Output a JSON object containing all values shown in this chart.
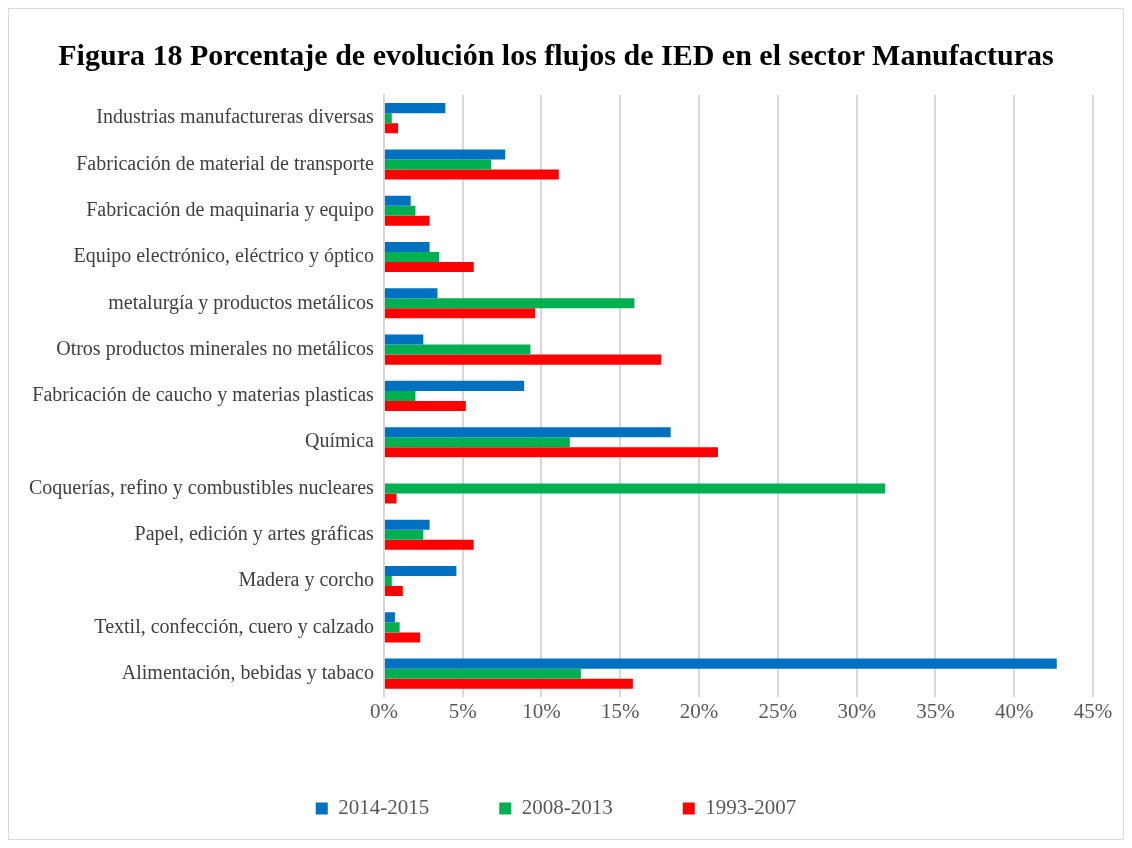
{
  "chart_data": {
    "type": "bar",
    "orientation": "horizontal",
    "title": "Figura 18 Porcentaje de evolución los flujos de IED en el sector Manufacturas",
    "categories": [
      "Industrias manufactureras diversas",
      "Fabricación de material de transporte",
      "Fabricación de maquinaria y equipo",
      "Equipo electrónico, eléctrico y óptico",
      "metalurgía y productos metálicos",
      "Otros productos minerales no metálicos",
      "Fabricación de caucho y materias plasticas",
      "Química",
      "Coquerías, refino y combustibles nucleares",
      "Papel, edición y artes gráficas",
      "Madera y corcho",
      "Textil, confección, cuero y calzado",
      "Alimentación, bebidas y tabaco"
    ],
    "series": [
      {
        "name": "2014-2015",
        "color": "#0070c0",
        "values": [
          3.9,
          7.7,
          1.7,
          2.9,
          3.4,
          2.5,
          8.9,
          18.2,
          0,
          2.9,
          4.6,
          0.7,
          42.7
        ]
      },
      {
        "name": "2008-2013",
        "color": "#00b050",
        "values": [
          0.5,
          6.8,
          2.0,
          3.5,
          15.9,
          9.3,
          2.0,
          11.8,
          31.8,
          2.5,
          0.5,
          1.0,
          12.5
        ]
      },
      {
        "name": "1993-2007",
        "color": "#ff0000",
        "values": [
          0.9,
          11.1,
          2.9,
          5.7,
          9.6,
          17.6,
          5.2,
          21.2,
          0.8,
          5.7,
          1.2,
          2.3,
          15.8
        ]
      }
    ],
    "xlim": [
      0,
      45
    ],
    "xticks": [
      {
        "value": 0,
        "label": "0%"
      },
      {
        "value": 5,
        "label": "5%"
      },
      {
        "value": 10,
        "label": "10%"
      },
      {
        "value": 15,
        "label": "15%"
      },
      {
        "value": 20,
        "label": "20%"
      },
      {
        "value": 25,
        "label": "25%"
      },
      {
        "value": 30,
        "label": "30%"
      },
      {
        "value": 35,
        "label": "35%"
      },
      {
        "value": 40,
        "label": "40%"
      },
      {
        "value": 45,
        "label": "45%"
      }
    ],
    "grid": "x",
    "legend": "bottom"
  }
}
